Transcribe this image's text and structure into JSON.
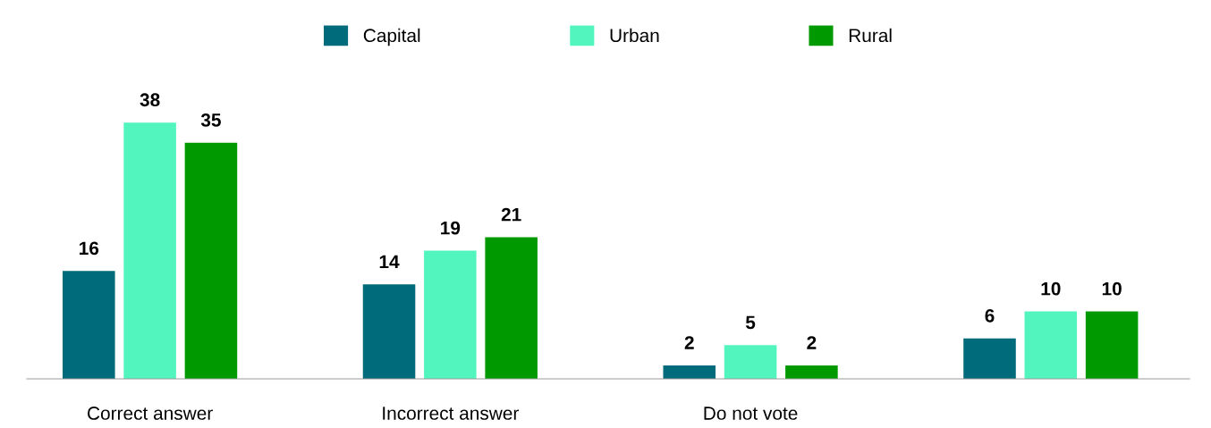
{
  "chart_data": {
    "type": "bar",
    "categories": [
      "Correct answer",
      "Incorrect answer",
      "Do not vote",
      null
    ],
    "series": [
      {
        "name": "Capital",
        "color": "#006b7a",
        "values": [
          16,
          14,
          2,
          6
        ]
      },
      {
        "name": "Urban",
        "color": "#52f5be",
        "values": [
          38,
          19,
          5,
          10
        ]
      },
      {
        "name": "Rural",
        "color": "#009a00",
        "values": [
          35,
          21,
          2,
          10
        ]
      }
    ],
    "data_labels": true,
    "legend": "top",
    "grid": false
  }
}
